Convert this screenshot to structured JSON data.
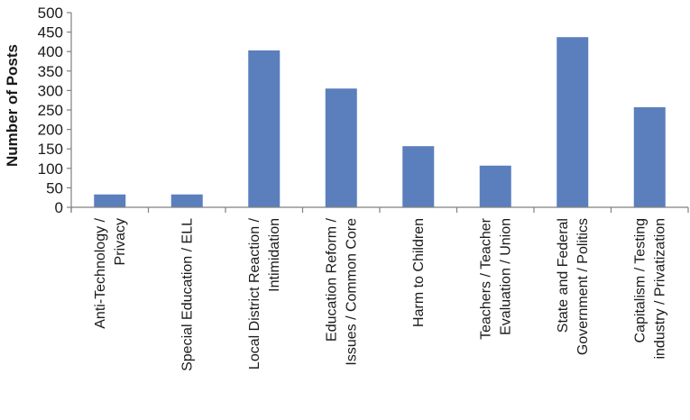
{
  "chart_data": {
    "type": "bar",
    "categories": [
      [
        "Anti-Technology /",
        "Privacy"
      ],
      [
        "Special Education / ELL"
      ],
      [
        "Local District Reaction /",
        "Intimidation"
      ],
      [
        "Education Reform /",
        "Issues / Common Core"
      ],
      [
        "Harm to Children"
      ],
      [
        "Teachers / Teacher",
        "Evaluation / Union"
      ],
      [
        "State and Federal",
        "Government / Politics"
      ],
      [
        "Capitalism / Testing",
        "industry / Privatization"
      ]
    ],
    "values": [
      33,
      33,
      403,
      305,
      157,
      107,
      437,
      257
    ],
    "ylabel": "Number of Posts",
    "xlabel": "",
    "ylim": [
      0,
      500
    ],
    "yticks": [
      0,
      50,
      100,
      150,
      200,
      250,
      300,
      350,
      400,
      450,
      500
    ],
    "bar_color": "#5b7fbd",
    "grid": false,
    "legend": "none"
  }
}
